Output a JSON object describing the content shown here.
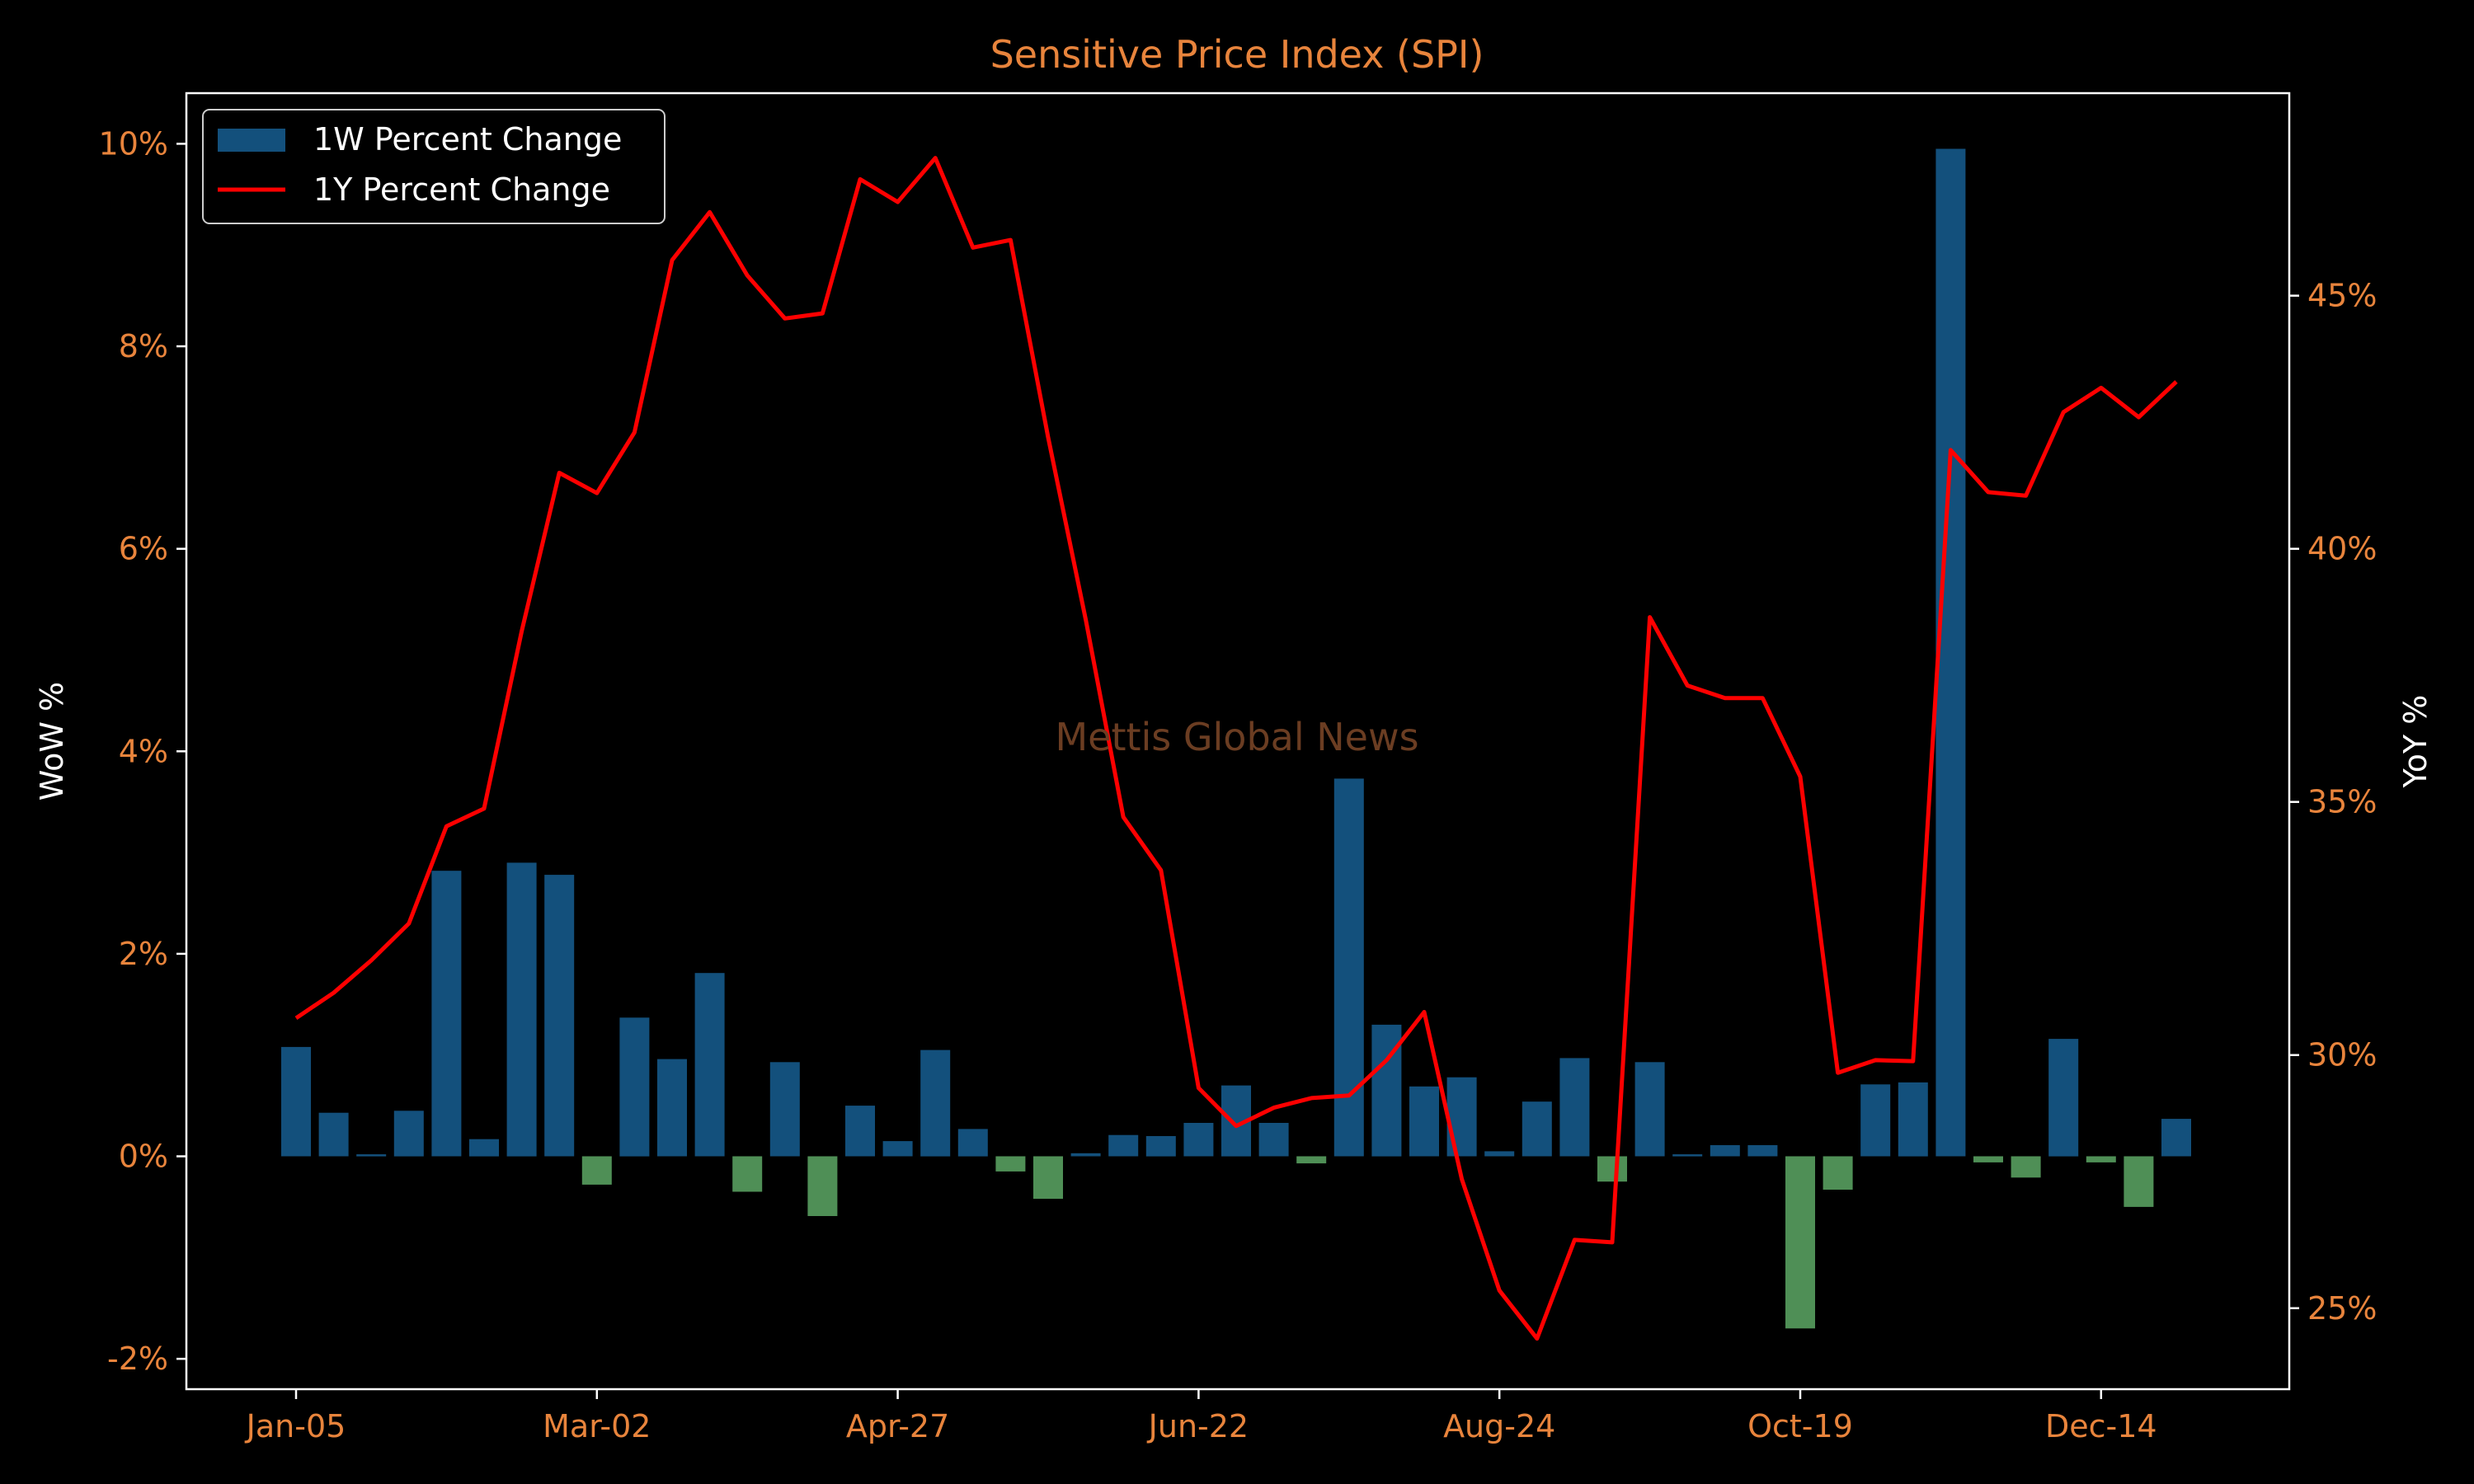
{
  "watermark": "Mettis Global News",
  "colors": {
    "background": "#000000",
    "axes": "#ffffff",
    "title": "#e8843c",
    "tick_text": "#e8843c",
    "label_text": "#ffffff",
    "positive_bar": "#13507c",
    "negative_bar": "#4f8f56",
    "line": "#ff0000",
    "watermark": "#6b3d22"
  },
  "chart_data": {
    "type": "bar+line",
    "title": "Sensitive Price Index (SPI)",
    "ylabel_left": "WoW %",
    "ylabel_right": "YoY %",
    "ylim_left": [
      -2.3,
      10.5
    ],
    "ylim_right": [
      23.4,
      49.0
    ],
    "yticks_left": [
      "-2%",
      "0%",
      "2%",
      "4%",
      "6%",
      "8%",
      "10%"
    ],
    "yticks_left_values": [
      -2,
      0,
      2,
      4,
      6,
      8,
      10
    ],
    "yticks_right": [
      "25%",
      "30%",
      "35%",
      "40%",
      "45%"
    ],
    "yticks_right_values": [
      25,
      30,
      35,
      40,
      45
    ],
    "xticks": [
      "Jan-05",
      "Mar-02",
      "Apr-27",
      "Jun-22",
      "Aug-24",
      "Oct-19",
      "Dec-14"
    ],
    "xtick_indices": [
      0,
      8,
      16,
      24,
      32,
      40,
      48
    ],
    "legend_position": "top-left",
    "grid": false,
    "series": [
      {
        "name": "1W Percent Change",
        "type": "bar",
        "values": [
          1.08,
          0.43,
          0.02,
          0.45,
          2.82,
          0.17,
          2.9,
          2.78,
          -0.28,
          1.37,
          0.96,
          1.81,
          -0.35,
          0.93,
          -0.59,
          0.5,
          0.15,
          1.05,
          0.27,
          -0.15,
          -0.42,
          0.03,
          0.21,
          0.2,
          0.33,
          0.7,
          0.33,
          -0.07,
          3.73,
          1.3,
          0.69,
          0.78,
          0.05,
          0.54,
          0.97,
          -0.25,
          0.93,
          0.02,
          0.11,
          0.11,
          -1.7,
          -0.33,
          0.71,
          0.73,
          9.95,
          -0.06,
          -0.21,
          1.16,
          -0.06,
          -0.5,
          0.37
        ]
      },
      {
        "name": "1Y Percent Change",
        "type": "line",
        "values": [
          30.73,
          31.23,
          31.87,
          32.6,
          34.52,
          34.87,
          38.37,
          41.5,
          41.1,
          42.3,
          45.7,
          46.65,
          45.4,
          44.55,
          44.65,
          47.3,
          46.85,
          47.72,
          45.95,
          46.1,
          42.2,
          38.6,
          34.7,
          33.65,
          29.35,
          28.6,
          28.96,
          29.15,
          29.2,
          29.9,
          30.85,
          27.55,
          25.35,
          24.4,
          26.35,
          26.3,
          38.65,
          37.3,
          37.05,
          37.05,
          35.5,
          29.65,
          29.9,
          29.88,
          41.95,
          41.12,
          41.05,
          42.7,
          43.18,
          42.6,
          43.3
        ]
      }
    ]
  }
}
